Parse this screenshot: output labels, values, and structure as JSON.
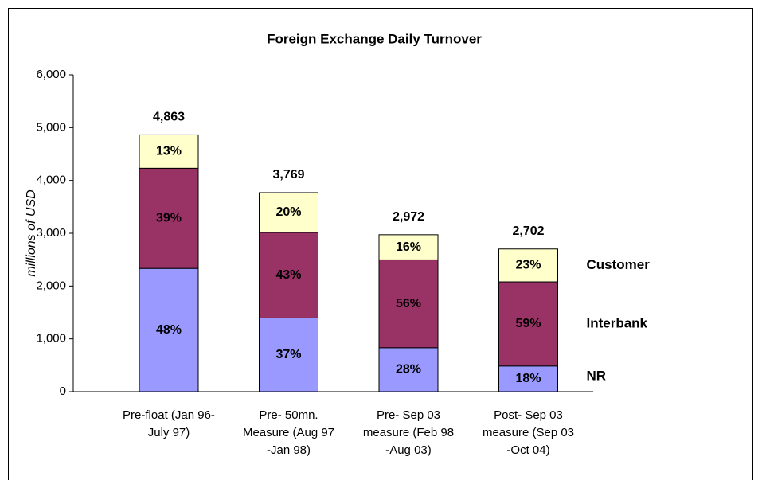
{
  "chart_data": {
    "type": "stacked_bar",
    "title": "Foreign Exchange Daily Turnover",
    "y_label": "millions of USD",
    "categories": [
      [
        "Pre-float (Jan 96-",
        "July 97)"
      ],
      [
        "Pre- 50mn.",
        "Measure (Aug 97",
        "-Jan 98)"
      ],
      [
        "Pre- Sep 03",
        "measure (Feb 98",
        "-Aug 03)"
      ],
      [
        "Post- Sep 03",
        "measure (Sep 03",
        "-Oct 04)"
      ]
    ],
    "series": [
      {
        "name": "NR",
        "color": "#9999ff",
        "label_color": "#ffffff",
        "values": [
          2334,
          1395,
          832,
          486
        ],
        "share_labels": [
          "48%",
          "37%",
          "28%",
          "18%"
        ]
      },
      {
        "name": "Interbank",
        "color": "#993366",
        "label_color": "#ffffff",
        "values": [
          1897,
          1620,
          1664,
          1594
        ],
        "share_labels": [
          "39%",
          "43%",
          "56%",
          "59%"
        ]
      },
      {
        "name": "Customer",
        "color": "#ffffcc",
        "label_color": "#333333",
        "legend_color": "#333333",
        "values": [
          632,
          754,
          476,
          622
        ],
        "share_labels": [
          "13%",
          "20%",
          "16%",
          "23%"
        ]
      }
    ],
    "totals": [
      4863,
      3769,
      2972,
      2702
    ],
    "total_labels": [
      "4,863",
      "3,769",
      "2,972",
      "2,702"
    ],
    "ylim": [
      0,
      6000
    ],
    "yticks": [
      0,
      {
        "value": 1000,
        "label": "1,000"
      },
      {
        "value": 2000,
        "label": "2,000"
      },
      {
        "value": 3000,
        "label": "3,000"
      },
      {
        "value": 4000,
        "label": "4,000"
      },
      {
        "value": 5000,
        "label": "5,000"
      },
      {
        "value": 6000,
        "label": "6,000"
      }
    ],
    "grid": false
  }
}
